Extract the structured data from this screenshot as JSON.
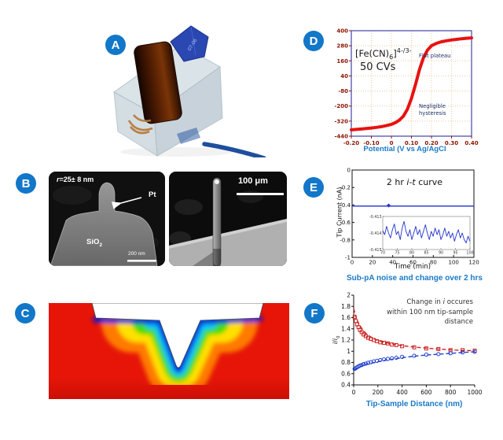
{
  "panels": {
    "A": {
      "badge": "A",
      "tip_label": "07-06"
    },
    "B": {
      "badge": "B",
      "r_label_it": "r",
      "r_label_rest": "=25± 8 nm",
      "pt_label": "Pt",
      "sio2_main": "SiO",
      "sio2_sub": "2",
      "scalebar_left": "200 nm",
      "scalebar_right": "100 μm"
    },
    "C": {
      "badge": "C"
    },
    "D": {
      "badge": "D"
    },
    "E": {
      "badge": "E"
    },
    "F": {
      "badge": "F"
    }
  },
  "colors": {
    "badge_blue": "#1277c8",
    "caption_blue": "#1b7ac6",
    "curve_red": "#e81111",
    "curve_blue": "#2233cc",
    "tick_maroon": "#8b1500",
    "frame_indigo": "#4343a8",
    "grid_tan": "#f0c79e"
  },
  "chart_data": [
    {
      "id": "D",
      "type": "line",
      "label_parts": {
        "pre": "[Fe(CN)",
        "sub": "6",
        "close": "]",
        "sup": "4-/3-"
      },
      "cvs_label": "50 CVs",
      "annotations": {
        "flat_plateau": "Flat plateau",
        "hysteresis_1": "Negligible",
        "hysteresis_2": "hysteresis"
      },
      "xlabel": "Potential (V vs Ag/AgCl",
      "xlim": [
        -0.2,
        0.4
      ],
      "ylim": [
        -440,
        400
      ],
      "x_tick_vals": [
        -0.2,
        -0.1,
        0,
        0.1,
        0.2,
        0.3,
        0.4
      ],
      "x_tick_labels": [
        "-0.20",
        "-0.10",
        "0",
        "0.10",
        "0.20",
        "0.30",
        "0.40"
      ],
      "y_tick_vals": [
        400,
        280,
        160,
        40,
        -80,
        -200,
        -320,
        -440
      ],
      "y_tick_labels": [
        "400",
        "280",
        "160",
        "40",
        "-80",
        "-200",
        "-320",
        "-440"
      ],
      "grid": true,
      "series": [
        {
          "name": "50 CVs overlay",
          "color": "#e81111",
          "points": [
            [
              -0.2,
              -390
            ],
            [
              -0.175,
              -386
            ],
            [
              -0.15,
              -383
            ],
            [
              -0.125,
              -379
            ],
            [
              -0.1,
              -375
            ],
            [
              -0.075,
              -370
            ],
            [
              -0.05,
              -364
            ],
            [
              -0.025,
              -356
            ],
            [
              0,
              -346
            ],
            [
              0.02,
              -332
            ],
            [
              0.04,
              -312
            ],
            [
              0.06,
              -280
            ],
            [
              0.08,
              -225
            ],
            [
              0.1,
              -140
            ],
            [
              0.12,
              -30
            ],
            [
              0.14,
              90
            ],
            [
              0.16,
              185
            ],
            [
              0.18,
              245
            ],
            [
              0.2,
              280
            ],
            [
              0.225,
              300
            ],
            [
              0.25,
              312
            ],
            [
              0.275,
              320
            ],
            [
              0.3,
              326
            ],
            [
              0.325,
              331
            ],
            [
              0.35,
              336
            ],
            [
              0.375,
              340
            ],
            [
              0.4,
              343
            ]
          ]
        }
      ]
    },
    {
      "id": "E",
      "type": "line",
      "title_parts": {
        "pre": "2 hr ",
        "it": "i-t",
        "post": " curve"
      },
      "ylabel": "Tip Current (nA)",
      "xlabel": "Time (min)",
      "caption": "Sub-pA noise and change over 2 hrs",
      "xlim": [
        0,
        120
      ],
      "ylim": [
        -1,
        0
      ],
      "x_tick_vals": [
        0,
        20,
        40,
        60,
        80,
        100,
        120
      ],
      "x_tick_labels": [
        "0",
        "20",
        "40",
        "60",
        "80",
        "100",
        "120"
      ],
      "y_tick_vals": [
        0,
        -0.2,
        -0.4,
        -0.6,
        -0.8,
        -1
      ],
      "y_tick_labels": [
        "0",
        "-0.2",
        "-0.4",
        "-0.6",
        "-0.8",
        "-1"
      ],
      "series": [
        {
          "name": "tip current",
          "color": "#2233cc",
          "points": [
            [
              0,
              -0.413
            ],
            [
              120,
              -0.413
            ]
          ]
        }
      ],
      "spike_point": [
        36,
        -0.406
      ],
      "inset": {
        "xlim": [
          70,
          100
        ],
        "ylim": [
          -0.415,
          -0.413
        ],
        "x_tick_labels": [
          "70",
          "75",
          "80",
          "85",
          "90",
          "95",
          "100"
        ],
        "x_tick_vals": [
          70,
          75,
          80,
          85,
          90,
          95,
          100
        ],
        "y_tick_labels": [
          "-0.413",
          "-0.414",
          "-0.415"
        ],
        "y_tick_vals": [
          -0.413,
          -0.414,
          -0.415
        ],
        "noise_y": [
          -0.41385,
          -0.4141,
          -0.4136,
          -0.414,
          -0.4143,
          -0.4138,
          -0.41345,
          -0.4141,
          -0.4139,
          -0.4144,
          -0.4137,
          -0.4133,
          -0.4139,
          -0.4142,
          -0.4138,
          -0.4144,
          -0.414,
          -0.4136,
          -0.4141,
          -0.4138,
          -0.4143,
          -0.4139,
          -0.4135,
          -0.414,
          -0.4144,
          -0.4139,
          -0.4142,
          -0.4137,
          -0.4141,
          -0.4138,
          -0.4144,
          -0.4141,
          -0.4137,
          -0.4142,
          -0.4139,
          -0.4143,
          -0.414,
          -0.4145,
          -0.4141,
          -0.4138,
          -0.4143,
          -0.414,
          -0.4144,
          -0.4146,
          -0.4142,
          -0.4145
        ]
      }
    },
    {
      "id": "F",
      "type": "scatter",
      "ann_parts": {
        "l1_pre": "Change in ",
        "l1_it": "i",
        "l1_post": " occures",
        "l2": "within 100 nm tip-sample",
        "l3": "distance"
      },
      "ylabel_parts": {
        "it1": "i",
        "sep": "/",
        "it2": "i",
        "sub": "0"
      },
      "xlabel": "Tip-Sample Distance (nm)",
      "xlim": [
        0,
        1000
      ],
      "ylim": [
        0.4,
        2
      ],
      "x_tick_vals": [
        0,
        200,
        400,
        600,
        800,
        1000
      ],
      "x_tick_labels": [
        "0",
        "200",
        "400",
        "600",
        "800",
        "1000"
      ],
      "y_tick_vals": [
        2,
        1.8,
        1.6,
        1.4,
        1.2,
        1,
        0.8,
        0.6,
        0.4
      ],
      "y_tick_labels": [
        "2",
        "1.8",
        "1.6",
        "1.4",
        "1.2",
        "1",
        "0.8",
        "0.6",
        "0.4"
      ],
      "series": [
        {
          "name": "positive feedback (squares)",
          "color": "#cc1f1f",
          "marker": "square",
          "points": [
            [
              8,
              1.61
            ],
            [
              18,
              1.54
            ],
            [
              28,
              1.48
            ],
            [
              40,
              1.43
            ],
            [
              52,
              1.38
            ],
            [
              66,
              1.34
            ],
            [
              82,
              1.3
            ],
            [
              100,
              1.27
            ],
            [
              120,
              1.24
            ],
            [
              142,
              1.22
            ],
            [
              166,
              1.2
            ],
            [
              192,
              1.18
            ],
            [
              220,
              1.16
            ],
            [
              250,
              1.15
            ],
            [
              282,
              1.14
            ],
            [
              316,
              1.12
            ],
            [
              352,
              1.11
            ],
            [
              400,
              1.09
            ],
            [
              500,
              1.07
            ],
            [
              600,
              1.05
            ],
            [
              700,
              1.04
            ],
            [
              800,
              1.02
            ],
            [
              900,
              1.02
            ],
            [
              1000,
              1.01
            ]
          ],
          "fit": [
            [
              0,
              1.76
            ],
            [
              20,
              1.6
            ],
            [
              40,
              1.5
            ],
            [
              60,
              1.43
            ],
            [
              80,
              1.37
            ],
            [
              100,
              1.32
            ],
            [
              130,
              1.27
            ],
            [
              160,
              1.23
            ],
            [
              200,
              1.19
            ],
            [
              250,
              1.16
            ],
            [
              300,
              1.14
            ],
            [
              360,
              1.115
            ],
            [
              420,
              1.095
            ],
            [
              500,
              1.075
            ],
            [
              600,
              1.055
            ],
            [
              700,
              1.04
            ],
            [
              800,
              1.025
            ],
            [
              900,
              1.015
            ],
            [
              1000,
              1.01
            ]
          ]
        },
        {
          "name": "negative feedback (circles)",
          "color": "#2040cc",
          "marker": "circle",
          "points": [
            [
              8,
              0.685
            ],
            [
              18,
              0.7
            ],
            [
              28,
              0.715
            ],
            [
              40,
              0.73
            ],
            [
              52,
              0.745
            ],
            [
              66,
              0.755
            ],
            [
              82,
              0.77
            ],
            [
              100,
              0.78
            ],
            [
              120,
              0.795
            ],
            [
              142,
              0.805
            ],
            [
              166,
              0.82
            ],
            [
              192,
              0.83
            ],
            [
              220,
              0.845
            ],
            [
              250,
              0.855
            ],
            [
              282,
              0.865
            ],
            [
              316,
              0.875
            ],
            [
              352,
              0.885
            ],
            [
              400,
              0.9
            ],
            [
              500,
              0.92
            ],
            [
              600,
              0.94
            ],
            [
              700,
              0.95
            ],
            [
              800,
              0.965
            ],
            [
              900,
              0.98
            ],
            [
              1000,
              0.99
            ]
          ],
          "fit": [
            [
              0,
              0.665
            ],
            [
              30,
              0.7
            ],
            [
              60,
              0.73
            ],
            [
              100,
              0.76
            ],
            [
              140,
              0.785
            ],
            [
              180,
              0.805
            ],
            [
              230,
              0.825
            ],
            [
              280,
              0.845
            ],
            [
              340,
              0.865
            ],
            [
              400,
              0.885
            ],
            [
              480,
              0.905
            ],
            [
              560,
              0.925
            ],
            [
              650,
              0.94
            ],
            [
              750,
              0.955
            ],
            [
              850,
              0.97
            ],
            [
              950,
              0.985
            ],
            [
              1000,
              0.99
            ]
          ]
        }
      ]
    }
  ]
}
